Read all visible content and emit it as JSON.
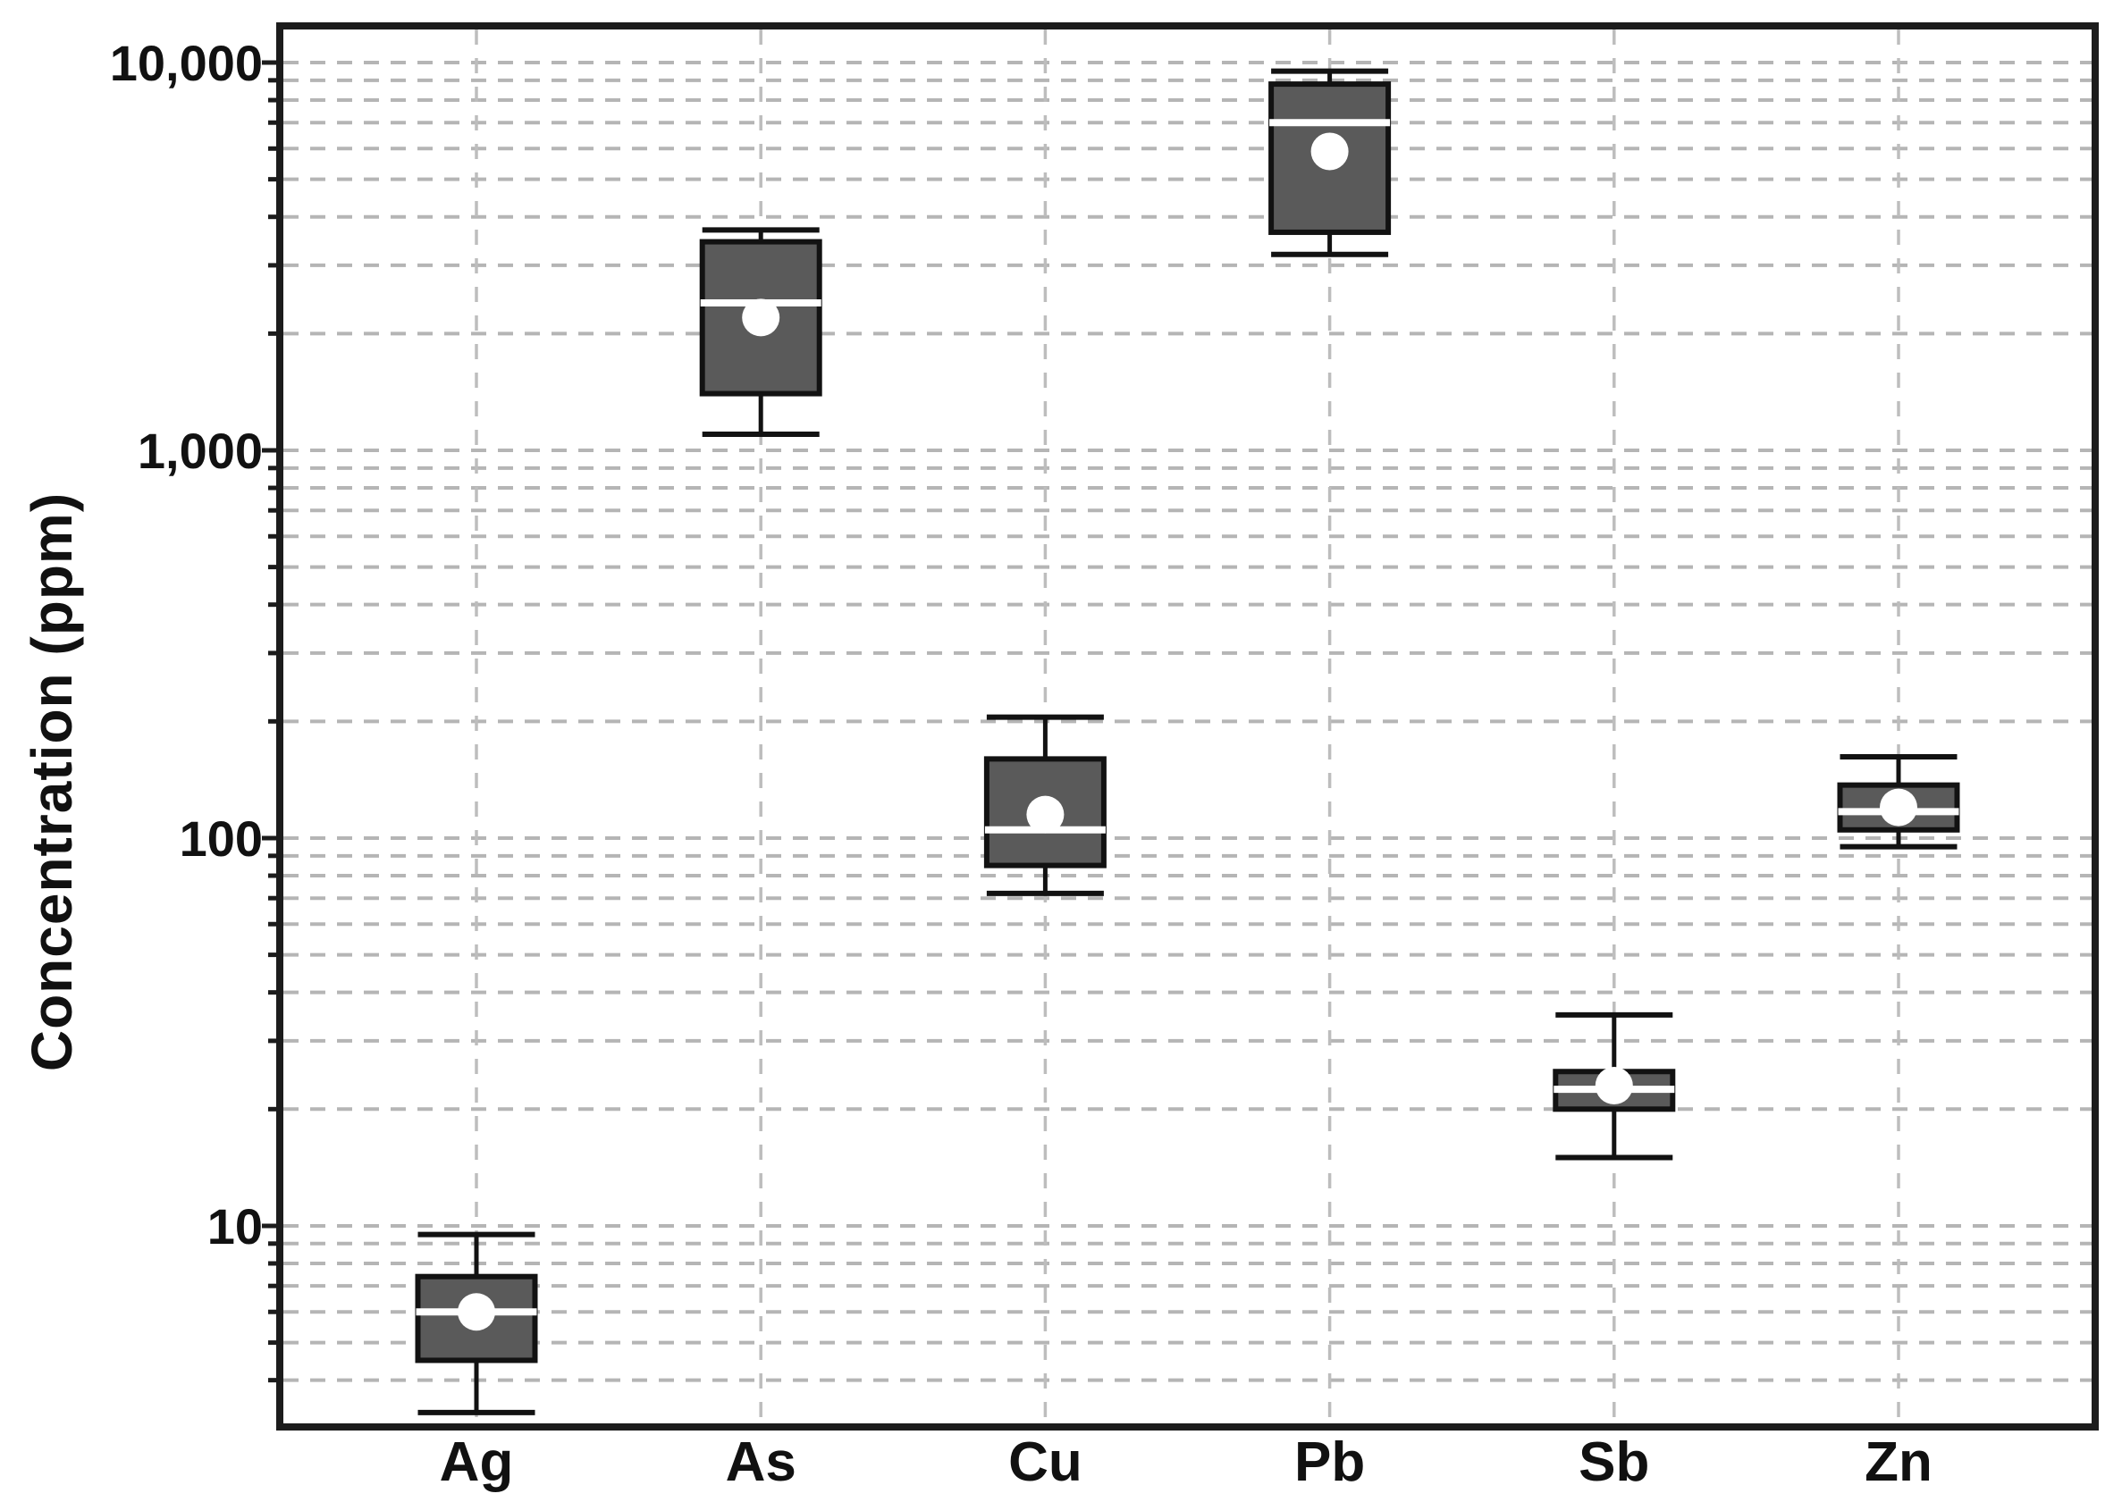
{
  "figure": {
    "background": "#ffffff"
  },
  "chart_data": {
    "type": "box",
    "title": "",
    "xlabel": "",
    "ylabel": "Concentration (ppm)",
    "y_scale": "log",
    "ylim": [
      3.03,
      12430
    ],
    "grid": {
      "horizontal": "log minor + major, dashed",
      "vertical": "dashed line at each category center",
      "legend": "none"
    },
    "y_major_ticks": [
      {
        "value": 10,
        "label": "10"
      },
      {
        "value": 100,
        "label": "100"
      },
      {
        "value": 1000,
        "label": "1,000"
      },
      {
        "value": 10000,
        "label": "10,000"
      }
    ],
    "categories": [
      "Ag",
      "As",
      "Cu",
      "Pb",
      "Sb",
      "Zn"
    ],
    "series": [
      {
        "name": "Ag",
        "whisker_low": 3.3,
        "q1": 4.5,
        "median": 6,
        "mean": 6,
        "q3": 7.4,
        "whisker_high": 9.5
      },
      {
        "name": "As",
        "whisker_low": 1100,
        "q1": 1400,
        "median": 2400,
        "mean": 2200,
        "q3": 3450,
        "whisker_high": 3700
      },
      {
        "name": "Cu",
        "whisker_low": 72,
        "q1": 85,
        "median": 105,
        "mean": 115,
        "q3": 160,
        "whisker_high": 205
      },
      {
        "name": "Pb",
        "whisker_low": 3200,
        "q1": 3650,
        "median": 7000,
        "mean": 5900,
        "q3": 8800,
        "whisker_high": 9500
      },
      {
        "name": "Sb",
        "whisker_low": 15,
        "q1": 20,
        "median": 22.5,
        "mean": 23,
        "q3": 25,
        "whisker_high": 35
      },
      {
        "name": "Zn",
        "whisker_low": 95,
        "q1": 105,
        "median": 117,
        "mean": 120,
        "q3": 137,
        "whisker_high": 162
      }
    ],
    "colors": {
      "box_fill": "#5a5a5a",
      "box_stroke": "#121212",
      "whisker": "#121212",
      "median_line": "#ffffff",
      "mean_marker": "#ffffff",
      "grid_line": "#b5b5b5",
      "grid_line_vertical": "#bdbdbd",
      "axis": "#1c1c1c",
      "label_text": "#111111"
    }
  }
}
